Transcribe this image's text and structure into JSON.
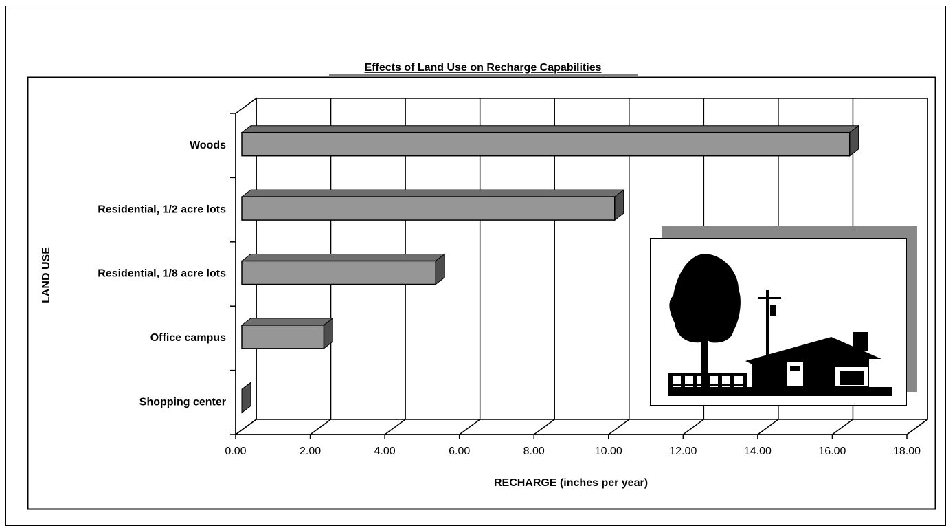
{
  "chart_data": {
    "type": "bar3d-horizontal",
    "title": "Effects of Land Use on Recharge Capabilities",
    "x_label": "RECHARGE (inches per year)",
    "y_label": "LAND USE",
    "categories": [
      "Woods",
      "Residential, 1/2 acre lots",
      "Residential, 1/8 acre lots",
      "Office campus",
      "Shopping center"
    ],
    "values": [
      16.3,
      10.0,
      5.2,
      2.2,
      0
    ],
    "color": "#969696",
    "xlim": [
      0,
      18
    ],
    "xticks": [
      {
        "value": 0,
        "label": "0.00"
      },
      {
        "value": 2,
        "label": "2.00"
      },
      {
        "value": 4,
        "label": "4.00"
      },
      {
        "value": 6,
        "label": "6.00"
      },
      {
        "value": 8,
        "label": "8.00"
      },
      {
        "value": 10,
        "label": "10.00"
      },
      {
        "value": 12,
        "label": "12.00"
      },
      {
        "value": 14,
        "label": "14.00"
      },
      {
        "value": 16,
        "label": "16.00"
      },
      {
        "value": 18,
        "label": "18.00"
      }
    ],
    "grid": true
  }
}
